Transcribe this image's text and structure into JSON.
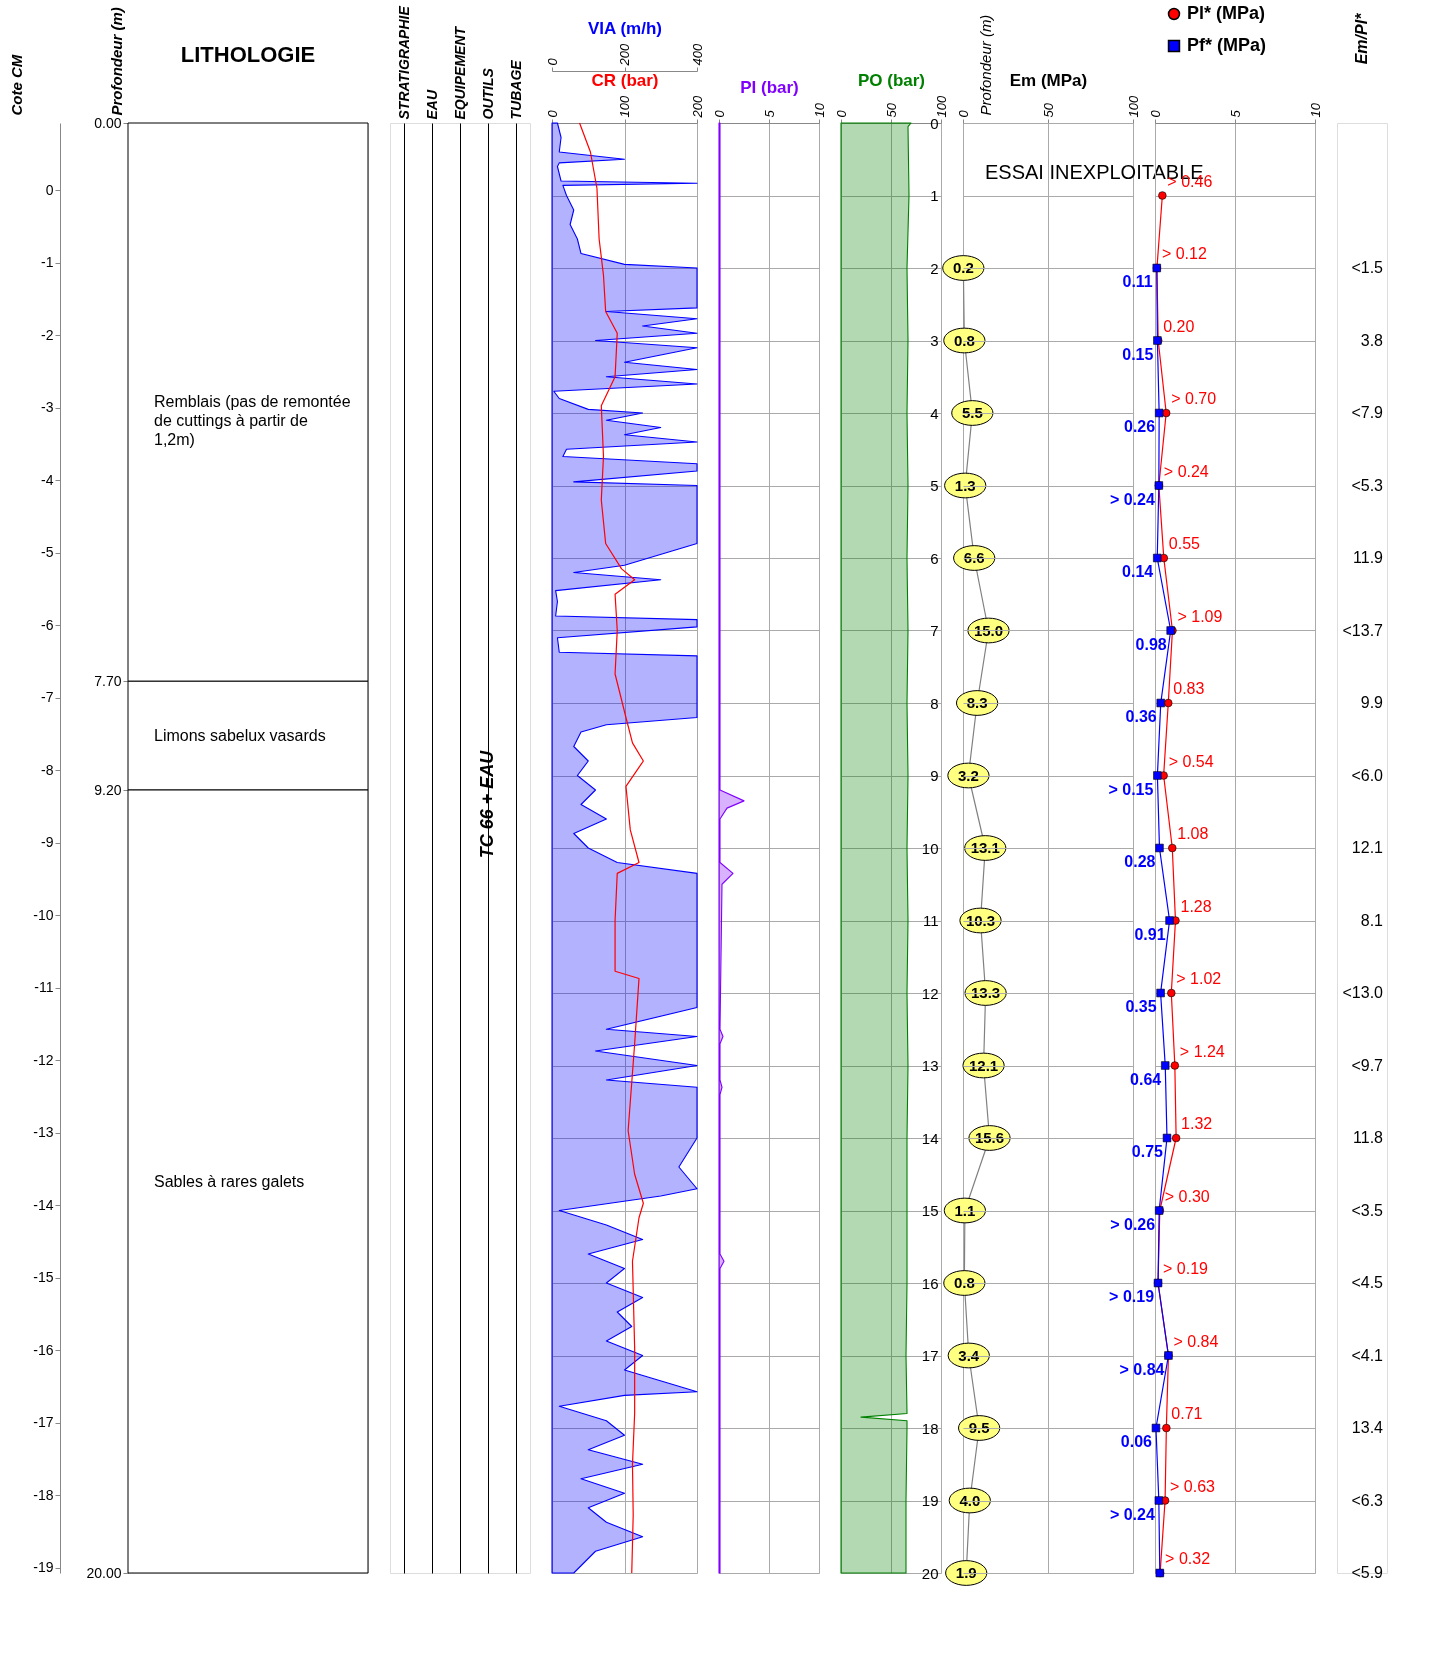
{
  "chart_data": [
    {
      "type": "bar",
      "title": "LITHOLOGIE",
      "ylabel": "Profondeur (m)",
      "y2label": "Cote CM",
      "stacked": true,
      "categories": [
        null
      ],
      "tick_labels": "y",
      "legend": false,
      "ylim": [
        20,
        0
      ],
      "yticks": [
        {
          "value": 0,
          "label": "0.00"
        },
        {
          "value": 7.7,
          "label": "7.70"
        },
        {
          "value": 9.2,
          "label": "9.20"
        },
        {
          "value": 20,
          "label": "20.00"
        }
      ],
      "y2lim": [
        -19.07,
        0.93
      ],
      "y2ticks": [
        0,
        -1,
        -2,
        -3,
        -4,
        -5,
        -6,
        -7,
        -8,
        -9,
        -10,
        -11,
        -12,
        -13,
        -14,
        -15,
        -16,
        -17,
        -18,
        -19
      ],
      "series": [
        {
          "name": "Remblais (pas de remontée de cuttings à partir de 1,2m)",
          "color": "#ffffff",
          "values": [
            7.7
          ]
        },
        {
          "name": "Limons sabelux vasards",
          "color": "#ffffff",
          "values": [
            1.5
          ]
        },
        {
          "name": "Sables à rares galets",
          "color": "#ffffff",
          "values": [
            10.8
          ]
        }
      ]
    },
    {
      "type": "other",
      "categories": [
        "STRATIGRAPHIE",
        "EAU",
        "EQUIPEMENT",
        "OUTILS",
        "TUBAGE"
      ],
      "annotations": [
        {
          "text": "TC 66 + EAU",
          "x": "OUTILS"
        }
      ]
    },
    {
      "type": "line",
      "orientation": "horizontal",
      "ylim": [
        20,
        0
      ],
      "yticks": [
        0,
        1,
        2,
        3,
        4,
        5,
        6,
        7,
        8,
        9,
        10,
        11,
        12,
        13,
        14,
        15,
        16,
        17,
        18,
        19,
        20
      ],
      "tick_labels": "x",
      "grid": true,
      "xlim": [
        0,
        400
      ],
      "xticks": [
        0,
        200,
        400
      ],
      "x2lim": [
        0,
        200
      ],
      "x2ticks": [
        0,
        100,
        200
      ],
      "series": [
        {
          "name": "VIA (m/h)",
          "type": "area",
          "color": "#0000ff",
          "x": [
            0,
            0.2,
            0.4,
            0.5,
            0.55,
            0.6,
            0.8,
            0.83,
            0.86,
            1.0,
            1.2,
            1.4,
            1.6,
            1.8,
            1.95,
            2.0,
            2.55,
            2.6,
            2.7,
            2.8,
            2.9,
            3.0,
            3.1,
            3.2,
            3.3,
            3.4,
            3.5,
            3.6,
            3.7,
            3.8,
            3.95,
            4.0,
            4.1,
            4.2,
            4.3,
            4.4,
            4.5,
            4.6,
            4.7,
            4.8,
            4.95,
            5.0,
            5.3,
            5.6,
            5.8,
            6.1,
            6.2,
            6.3,
            6.45,
            6.6,
            6.8,
            6.85,
            6.95,
            7.1,
            7.3,
            7.35,
            7.8,
            8.2,
            8.3,
            8.4,
            8.6,
            8.8,
            9.0,
            9.2,
            9.4,
            9.6,
            9.8,
            10.0,
            10.2,
            10.35,
            10.4,
            11.0,
            11.7,
            11.8,
            12.2,
            12.5,
            12.6,
            12.8,
            13.0,
            13.2,
            13.3,
            13.6,
            14.0,
            14.4,
            14.7,
            14.8,
            15.0,
            15.2,
            15.4,
            15.6,
            15.8,
            16.0,
            16.2,
            16.4,
            16.6,
            16.8,
            17.0,
            17.2,
            17.5,
            17.55,
            17.7,
            17.9,
            18.1,
            18.3,
            18.5,
            18.7,
            18.9,
            19.1,
            19.3,
            19.5,
            19.7,
            20.0
          ],
          "values": [
            15,
            25,
            20,
            200,
            20,
            15,
            25,
            400,
            30,
            40,
            60,
            50,
            70,
            80,
            200,
            400,
            400,
            150,
            400,
            250,
            400,
            120,
            400,
            300,
            200,
            400,
            150,
            400,
            5,
            20,
            100,
            250,
            150,
            300,
            200,
            400,
            40,
            30,
            400,
            400,
            60,
            400,
            400,
            400,
            400,
            200,
            60,
            300,
            10,
            15,
            10,
            400,
            400,
            15,
            20,
            400,
            400,
            400,
            150,
            80,
            60,
            100,
            70,
            120,
            80,
            150,
            60,
            100,
            180,
            400,
            400,
            400,
            400,
            400,
            400,
            150,
            400,
            120,
            400,
            150,
            400,
            400,
            400,
            350,
            400,
            300,
            20,
            150,
            250,
            100,
            200,
            150,
            250,
            180,
            220,
            150,
            250,
            200,
            400,
            200,
            20,
            150,
            200,
            100,
            250,
            80,
            200,
            100,
            150,
            250,
            120,
            60
          ]
        },
        {
          "name": "CR (bar)",
          "type": "line",
          "axis": "x2",
          "color": "#ff0000",
          "x": [
            0,
            0.4,
            0.9,
            1.6,
            2.1,
            2.6,
            2.9,
            3.5,
            3.9,
            4.6,
            5.2,
            5.8,
            6.15,
            6.3,
            6.5,
            7.0,
            7.6,
            8.2,
            8.55,
            8.8,
            9.15,
            9.75,
            10.2,
            10.35,
            11.0,
            11.7,
            11.8,
            12.7,
            13.9,
            14.5,
            14.9,
            15.1,
            15.7,
            16.9,
            17.8,
            18.5,
            19.2,
            20.0
          ],
          "values": [
            38,
            53,
            62,
            65,
            71,
            74,
            90,
            87,
            68,
            71,
            68,
            74,
            96,
            114,
            87,
            90,
            87,
            102,
            111,
            126,
            102,
            108,
            120,
            90,
            87,
            87,
            120,
            114,
            105,
            114,
            126,
            120,
            111,
            114,
            114,
            111,
            112,
            110
          ]
        }
      ]
    },
    {
      "type": "area",
      "orientation": "horizontal",
      "ylim": [
        20,
        0
      ],
      "yticks": [
        0,
        1,
        2,
        3,
        4,
        5,
        6,
        7,
        8,
        9,
        10,
        11,
        12,
        13,
        14,
        15,
        16,
        17,
        18,
        19,
        20
      ],
      "tick_labels": "x",
      "grid": true,
      "xlim": [
        0,
        10
      ],
      "xticks": [
        0,
        5,
        10
      ],
      "series": [
        {
          "name": "PI (bar)",
          "color": "#8000ff",
          "x": [
            0,
            9.2,
            9.35,
            9.45,
            9.6,
            10.2,
            10.35,
            10.5,
            12.5,
            12.6,
            12.7,
            13.2,
            13.3,
            13.4,
            15.6,
            15.7,
            15.8,
            20
          ],
          "values": [
            0.1,
            0.1,
            2.5,
            0.8,
            0.1,
            0.1,
            1.4,
            0.3,
            0.1,
            0.4,
            0.1,
            0.1,
            0.3,
            0.1,
            0.1,
            0.5,
            0.1,
            0.1
          ]
        }
      ]
    },
    {
      "type": "area",
      "orientation": "horizontal",
      "ylim": [
        20,
        0
      ],
      "yticks": [
        0,
        1,
        2,
        3,
        4,
        5,
        6,
        7,
        8,
        9,
        10,
        11,
        12,
        13,
        14,
        15,
        16,
        17,
        18,
        19,
        20
      ],
      "tick_labels": "x",
      "grid": true,
      "xlim": [
        0,
        100
      ],
      "xticks": [
        0,
        50,
        100
      ],
      "series": [
        {
          "name": "PO (bar)",
          "color": "#008000",
          "x": [
            0,
            0.05,
            1,
            2,
            3,
            4,
            5,
            6,
            7,
            8,
            9,
            10,
            11,
            12,
            13,
            14,
            15,
            16,
            17,
            17.8,
            17.85,
            17.9,
            18,
            19,
            20
          ],
          "values": [
            70,
            67,
            68,
            66,
            67,
            66,
            67,
            66,
            67,
            66,
            67,
            66,
            67,
            66,
            67,
            66,
            66,
            66,
            65,
            66,
            20,
            66,
            66,
            65,
            65
          ]
        }
      ]
    },
    {
      "type": "line",
      "orientation": "horizontal",
      "xlabel": "Em (MPa)",
      "ylabel": "Profondeur (m)",
      "ylim": [
        20,
        0
      ],
      "yticks": [
        0,
        1,
        2,
        3,
        4,
        5,
        6,
        7,
        8,
        9,
        10,
        11,
        12,
        13,
        14,
        15,
        16,
        17,
        18,
        19,
        20
      ],
      "grid": true,
      "xlim": [
        0,
        100
      ],
      "xticks": [
        0,
        50,
        100
      ],
      "annotations": [
        "ESSAI INEXPLOITABLE"
      ],
      "series": [
        {
          "color": "#808080",
          "marker": "circle",
          "x": [
            2,
            3,
            4,
            5,
            6,
            7,
            8,
            9,
            10,
            11,
            12,
            13,
            14,
            15,
            16,
            17,
            18,
            19,
            20
          ],
          "values": [
            0.2,
            0.8,
            5.5,
            1.3,
            6.6,
            15.0,
            8.3,
            3.2,
            13.1,
            10.3,
            13.3,
            12.1,
            15.6,
            1.1,
            0.8,
            3.4,
            9.5,
            4.0,
            1.9
          ],
          "value_labels": [
            "0.2",
            "0.8",
            "5.5",
            "1.3",
            "6.6",
            "15.0",
            "8.3",
            "3.2",
            "13.1",
            "10.3",
            "13.3",
            "12.1",
            "15.6",
            "1.1",
            "0.8",
            "3.4",
            "9.5",
            "4.0",
            "1.9"
          ]
        }
      ]
    },
    {
      "type": "line",
      "orientation": "horizontal",
      "ylim": [
        20,
        0
      ],
      "yticks": [
        0,
        1,
        2,
        3,
        4,
        5,
        6,
        7,
        8,
        9,
        10,
        11,
        12,
        13,
        14,
        15,
        16,
        17,
        18,
        19,
        20
      ],
      "tick_labels": "x",
      "grid": true,
      "xlim": [
        0,
        10
      ],
      "xticks": [
        0,
        5,
        10
      ],
      "legend": "top",
      "series": [
        {
          "name": "Pl* (MPa)",
          "color": "#ff0000",
          "marker": "circle",
          "x": [
            1,
            2,
            3,
            4,
            5,
            6,
            7,
            8,
            9,
            10,
            11,
            12,
            13,
            14,
            15,
            16,
            17,
            18,
            19,
            20
          ],
          "values": [
            0.46,
            0.12,
            0.2,
            0.7,
            0.24,
            0.55,
            1.09,
            0.83,
            0.54,
            1.08,
            1.28,
            1.02,
            1.24,
            1.32,
            0.3,
            0.19,
            0.84,
            0.71,
            0.63,
            0.32
          ],
          "value_labels": [
            "> 0.46",
            "> 0.12",
            "0.20",
            "> 0.70",
            "> 0.24",
            "0.55",
            "> 1.09",
            "0.83",
            "> 0.54",
            "1.08",
            "1.28",
            "> 1.02",
            "> 1.24",
            "1.32",
            "> 0.30",
            "> 0.19",
            "> 0.84",
            "0.71",
            "> 0.63",
            "> 0.32"
          ]
        },
        {
          "name": "Pf* (MPa)",
          "color": "#0000ff",
          "marker": "square",
          "x": [
            2,
            3,
            4,
            5,
            6,
            7,
            8,
            9,
            10,
            11,
            12,
            13,
            14,
            15,
            16,
            17,
            18,
            19,
            20
          ],
          "values": [
            0.11,
            0.15,
            0.26,
            0.24,
            0.14,
            0.98,
            0.36,
            0.15,
            0.28,
            0.91,
            0.35,
            0.64,
            0.75,
            0.26,
            0.19,
            0.84,
            0.06,
            0.24,
            0.3
          ],
          "value_labels": [
            "0.11",
            "0.15",
            "0.26",
            "> 0.24",
            "0.14",
            "0.98",
            "0.36",
            "> 0.15",
            "0.28",
            "0.91",
            "0.35",
            "0.64",
            "0.75",
            "> 0.26",
            "> 0.19",
            "> 0.84",
            "0.06",
            "> 0.24",
            null
          ]
        }
      ]
    },
    {
      "type": "other",
      "xlabel": "Em/Pl*",
      "annotations": [
        "<1.5",
        "3.8",
        "<7.9",
        "<5.3",
        "11.9",
        "<13.7",
        "9.9",
        "<6.0",
        "12.1",
        "8.1",
        "<13.0",
        "<9.7",
        "11.8",
        "<3.5",
        "<4.5",
        "<4.1",
        "13.4",
        "<6.3",
        "<5.9"
      ]
    }
  ]
}
